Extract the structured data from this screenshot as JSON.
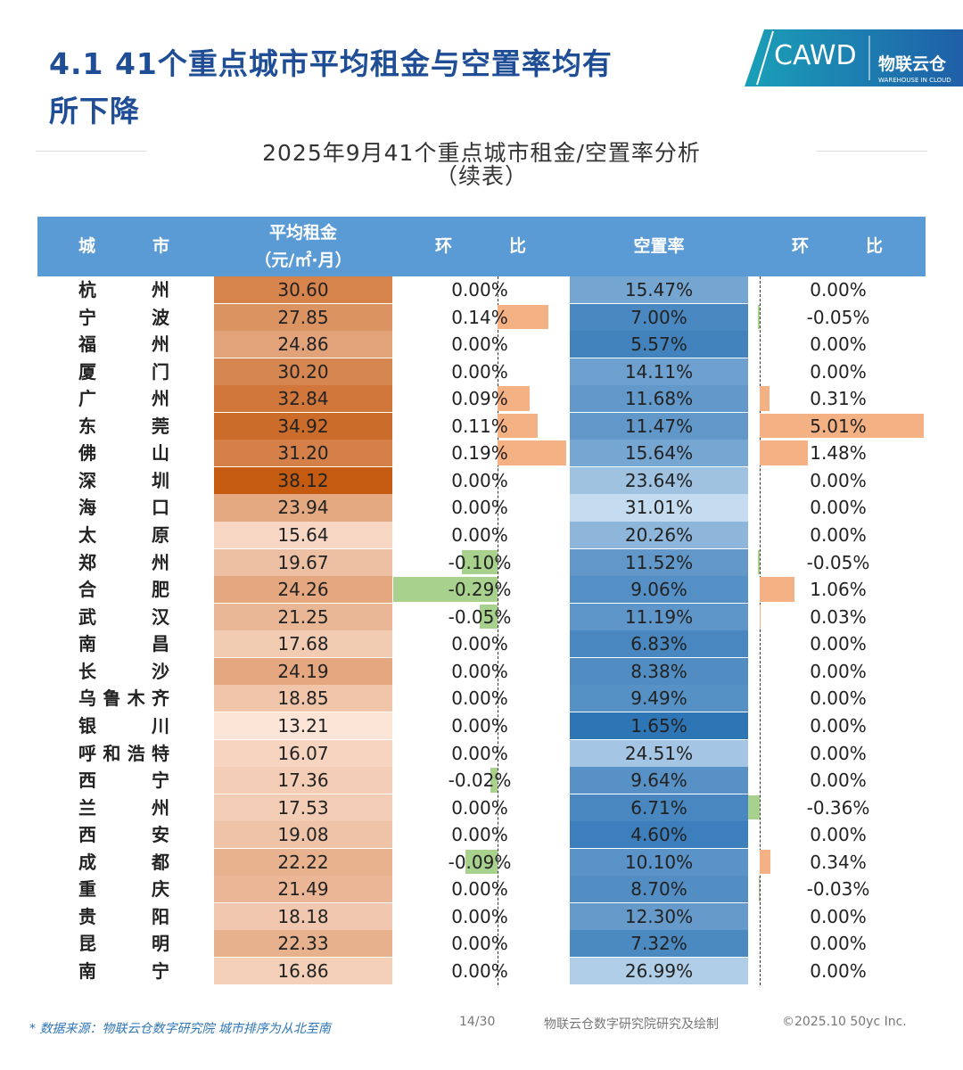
{
  "header": {
    "title_line1": "4.1 41个重点城市平均租金与空置率均有",
    "title_line2": "所下降",
    "subtitle": "2025年9月41个重点城市租金/空置率分析",
    "subtitle2": "（续表）"
  },
  "logo": {
    "cawd": "CAWD",
    "brand": "物联云仓",
    "brand_en": "WAREHOUSE IN CLOUD"
  },
  "table": {
    "headers": [
      "城市",
      [
        "平均租金",
        "（元/㎡·月）"
      ],
      "环比",
      "空置率",
      "环比"
    ],
    "rows": [
      [
        "杭州",
        "30.60",
        "0.00%",
        "15.47%",
        "0.00%"
      ],
      [
        "宁波",
        "27.85",
        "0.14%",
        "7.00%",
        "-0.05%"
      ],
      [
        "福州",
        "24.86",
        "0.00%",
        "5.57%",
        "0.00%"
      ],
      [
        "厦门",
        "30.20",
        "0.00%",
        "14.11%",
        "0.00%"
      ],
      [
        "广州",
        "32.84",
        "0.09%",
        "11.68%",
        "0.31%"
      ],
      [
        "东莞",
        "34.92",
        "0.11%",
        "11.47%",
        "5.01%"
      ],
      [
        "佛山",
        "31.20",
        "0.19%",
        "15.64%",
        "1.48%"
      ],
      [
        "深圳",
        "38.12",
        "0.00%",
        "23.64%",
        "0.00%"
      ],
      [
        "海口",
        "23.94",
        "0.00%",
        "31.01%",
        "0.00%"
      ],
      [
        "太原",
        "15.64",
        "0.00%",
        "20.26%",
        "0.00%"
      ],
      [
        "郑州",
        "19.67",
        "-0.10%",
        "11.52%",
        "-0.05%"
      ],
      [
        "合肥",
        "24.26",
        "-0.29%",
        "9.06%",
        "1.06%"
      ],
      [
        "武汉",
        "21.25",
        "-0.05%",
        "11.19%",
        "0.03%"
      ],
      [
        "南昌",
        "17.68",
        "0.00%",
        "6.83%",
        "0.00%"
      ],
      [
        "长沙",
        "24.19",
        "0.00%",
        "8.38%",
        "0.00%"
      ],
      [
        "乌鲁木齐",
        "18.85",
        "0.00%",
        "9.49%",
        "0.00%"
      ],
      [
        "银川",
        "13.21",
        "0.00%",
        "1.65%",
        "0.00%"
      ],
      [
        "呼和浩特",
        "16.07",
        "0.00%",
        "24.51%",
        "0.00%"
      ],
      [
        "西宁",
        "17.36",
        "-0.02%",
        "9.64%",
        "0.00%"
      ],
      [
        "兰州",
        "17.53",
        "0.00%",
        "6.71%",
        "-0.36%"
      ],
      [
        "西安",
        "19.08",
        "0.00%",
        "4.60%",
        "0.00%"
      ],
      [
        "成都",
        "22.22",
        "-0.09%",
        "10.10%",
        "0.34%"
      ],
      [
        "重庆",
        "21.49",
        "0.00%",
        "8.70%",
        "-0.03%"
      ],
      [
        "贵阳",
        "18.18",
        "0.00%",
        "12.30%",
        "0.00%"
      ],
      [
        "昆明",
        "22.33",
        "0.00%",
        "7.32%",
        "0.00%"
      ],
      [
        "南宁",
        "16.86",
        "0.00%",
        "26.99%",
        "0.00%"
      ]
    ]
  },
  "footer": {
    "source": "* 数据来源：物联云仓数字研究院   城市排序为从北至南",
    "page": "14/30",
    "credit": "物联云仓数字研究院研究及绘制",
    "copyright": "©2025.10 50yc Inc."
  }
}
